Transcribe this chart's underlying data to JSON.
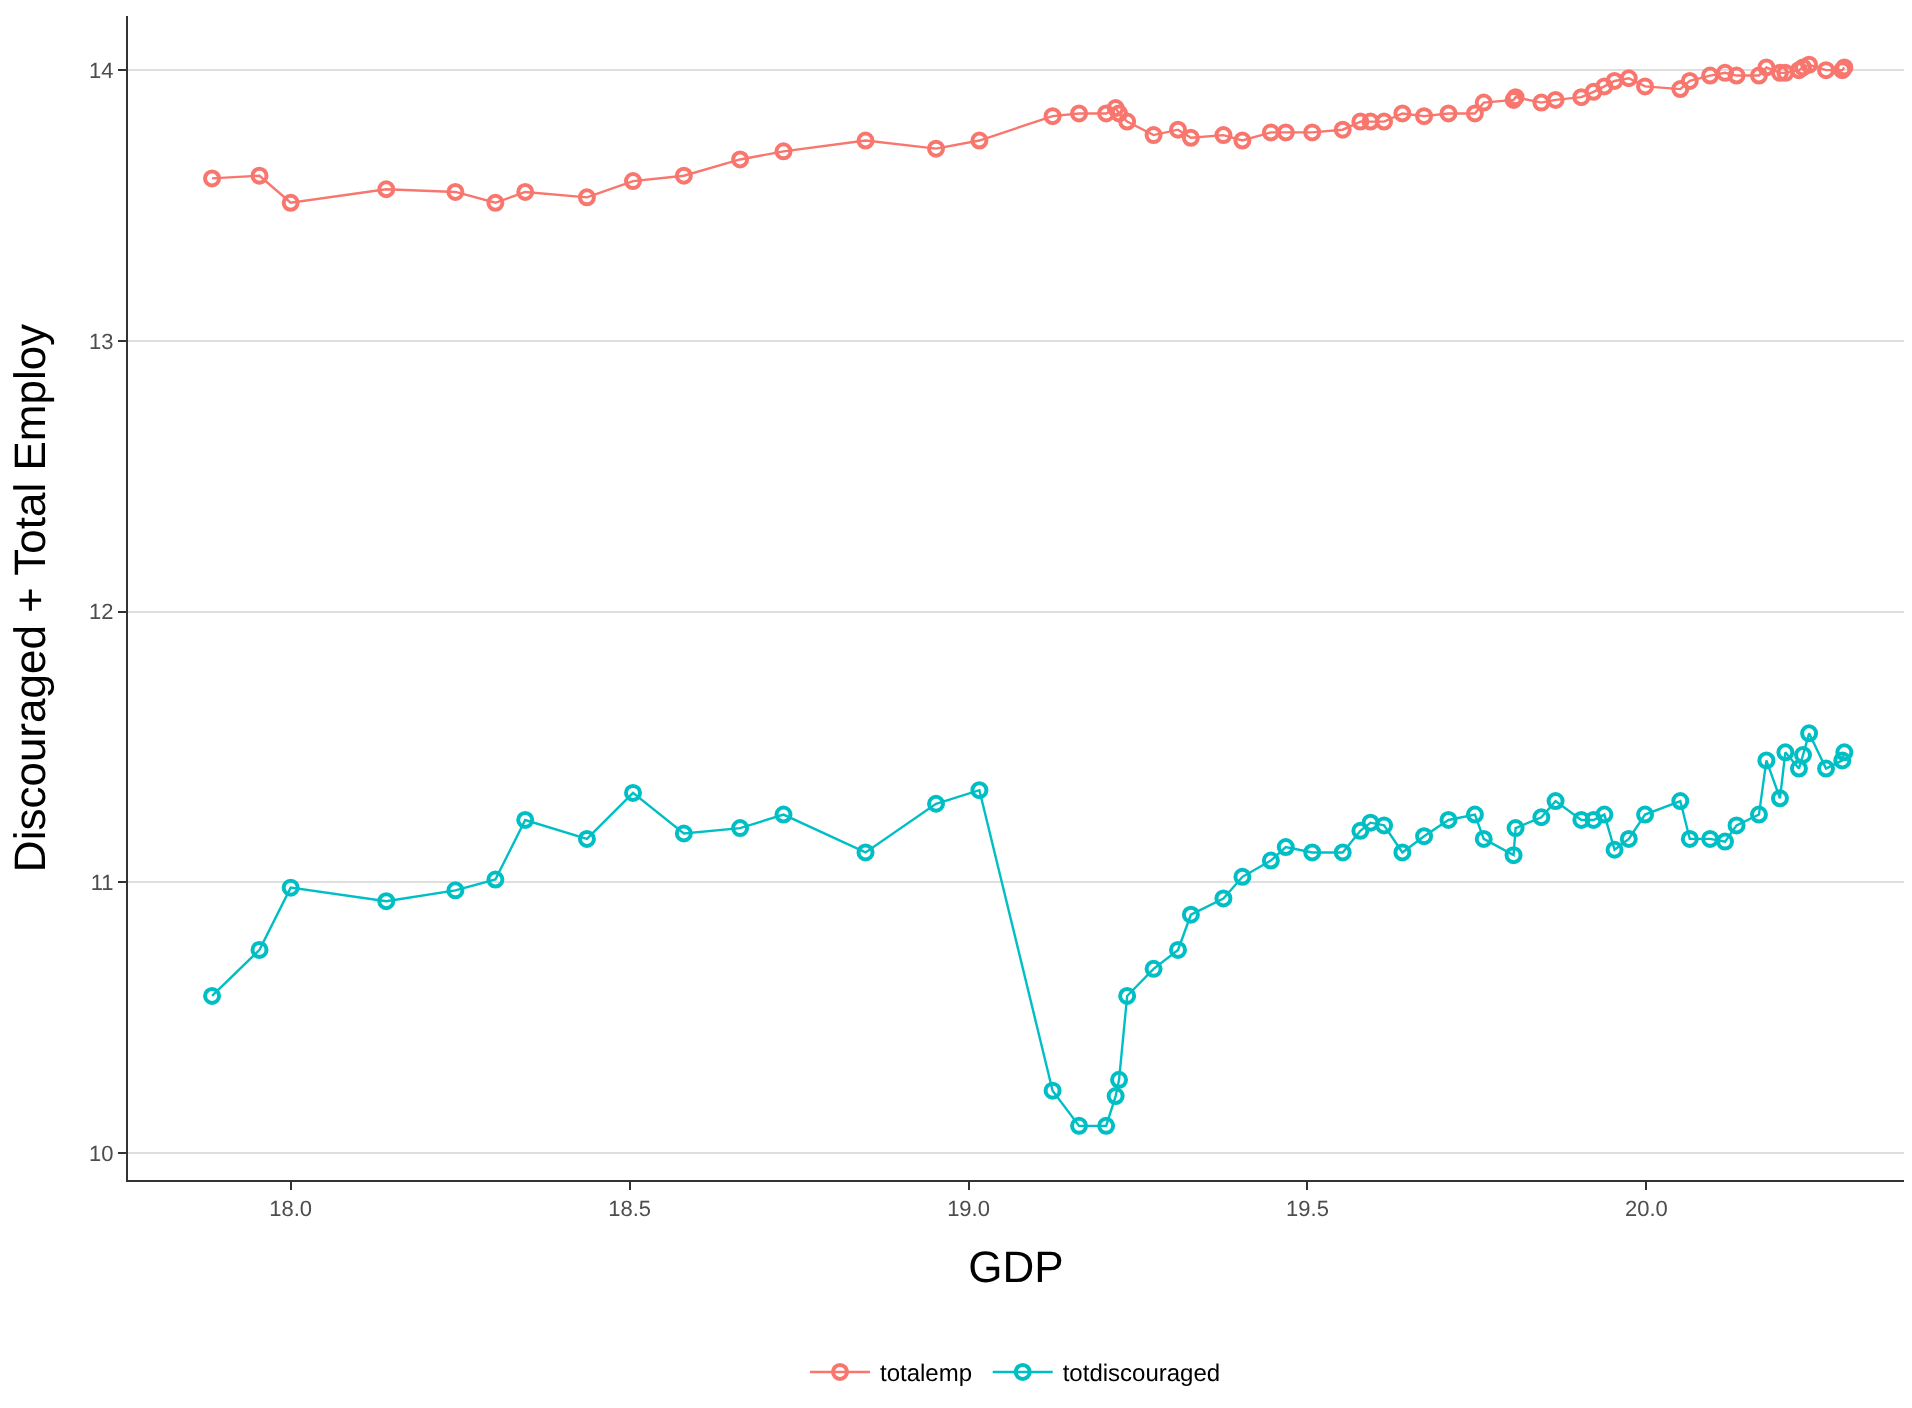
{
  "chart_data": {
    "type": "line",
    "xlabel": "GDP",
    "ylabel": "Discouraged + Total Employ",
    "x": [
      17.884,
      17.954,
      18.0,
      18.141,
      18.243,
      18.302,
      18.346,
      18.437,
      18.505,
      18.58,
      18.663,
      18.727,
      18.848,
      18.952,
      19.016,
      19.124,
      19.163,
      19.203,
      19.217,
      19.222,
      19.234,
      19.273,
      19.309,
      19.328,
      19.376,
      19.404,
      19.446,
      19.468,
      19.507,
      19.552,
      19.578,
      19.593,
      19.613,
      19.64,
      19.672,
      19.708,
      19.747,
      19.76,
      19.804,
      19.807,
      19.845,
      19.866,
      19.904,
      19.922,
      19.938,
      19.953,
      19.974,
      19.998,
      20.05,
      20.064,
      20.094,
      20.116,
      20.133,
      20.166,
      20.177,
      20.197,
      20.205,
      20.225,
      20.231,
      20.24,
      20.265,
      20.289,
      20.292
    ],
    "series": [
      {
        "name": "totalemp",
        "color": "#f8766d",
        "values": [
          13.6,
          13.61,
          13.51,
          13.56,
          13.55,
          13.51,
          13.55,
          13.53,
          13.59,
          13.61,
          13.67,
          13.7,
          13.74,
          13.71,
          13.74,
          13.83,
          13.84,
          13.84,
          13.86,
          13.84,
          13.81,
          13.76,
          13.78,
          13.75,
          13.76,
          13.74,
          13.77,
          13.77,
          13.77,
          13.78,
          13.81,
          13.81,
          13.81,
          13.84,
          13.83,
          13.84,
          13.84,
          13.88,
          13.89,
          13.9,
          13.88,
          13.89,
          13.9,
          13.92,
          13.94,
          13.96,
          13.97,
          13.94,
          13.93,
          13.96,
          13.98,
          13.99,
          13.98,
          13.98,
          14.01,
          13.99,
          13.99,
          14.0,
          14.01,
          14.02,
          14.0,
          14.0,
          14.01
        ]
      },
      {
        "name": "totdiscouraged",
        "color": "#00bfc4",
        "values": [
          10.58,
          10.75,
          10.98,
          10.93,
          10.97,
          11.01,
          11.23,
          11.16,
          11.33,
          11.18,
          11.2,
          11.25,
          11.11,
          11.29,
          11.34,
          10.23,
          10.1,
          10.1,
          10.21,
          10.27,
          10.58,
          10.68,
          10.75,
          10.88,
          10.94,
          11.02,
          11.08,
          11.13,
          11.11,
          11.11,
          11.19,
          11.22,
          11.21,
          11.11,
          11.17,
          11.23,
          11.25,
          11.16,
          11.1,
          11.2,
          11.24,
          11.3,
          11.23,
          11.23,
          11.25,
          11.12,
          11.16,
          11.25,
          11.3,
          11.16,
          11.16,
          11.15,
          11.21,
          11.25,
          11.45,
          11.31,
          11.48,
          11.42,
          11.47,
          11.55,
          11.42,
          11.45,
          11.48
        ]
      }
    ],
    "xlim": [
      17.76,
      20.38
    ],
    "xticks": [
      {
        "value": 18,
        "label": "18.0"
      },
      {
        "value": 18.5,
        "label": "18.5"
      },
      {
        "value": 19,
        "label": "19.0"
      },
      {
        "value": 19.5,
        "label": "19.5"
      },
      {
        "value": 20,
        "label": "20.0"
      }
    ],
    "ylim": [
      9.9,
      14.2
    ],
    "yticks": [
      10,
      11,
      12,
      13,
      14
    ],
    "grid": "y",
    "legend": "bottom",
    "marker": "circle",
    "line_style": "solid"
  }
}
